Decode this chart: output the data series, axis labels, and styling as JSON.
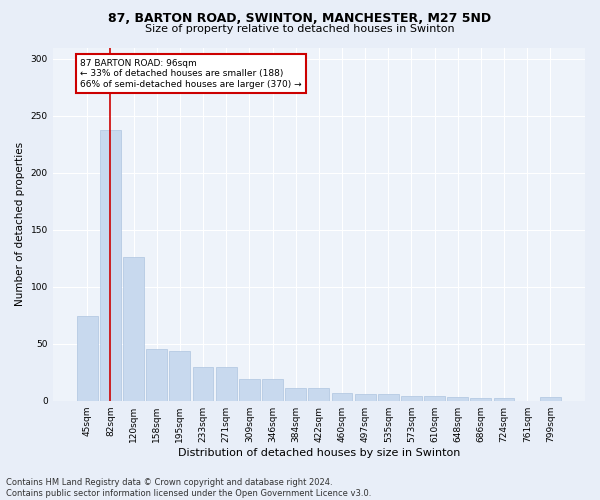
{
  "title1": "87, BARTON ROAD, SWINTON, MANCHESTER, M27 5ND",
  "title2": "Size of property relative to detached houses in Swinton",
  "xlabel": "Distribution of detached houses by size in Swinton",
  "ylabel": "Number of detached properties",
  "categories": [
    "45sqm",
    "82sqm",
    "120sqm",
    "158sqm",
    "195sqm",
    "233sqm",
    "271sqm",
    "309sqm",
    "346sqm",
    "384sqm",
    "422sqm",
    "460sqm",
    "497sqm",
    "535sqm",
    "573sqm",
    "610sqm",
    "648sqm",
    "686sqm",
    "724sqm",
    "761sqm",
    "799sqm"
  ],
  "values": [
    74,
    238,
    126,
    45,
    44,
    30,
    30,
    19,
    19,
    11,
    11,
    7,
    6,
    6,
    4,
    4,
    3,
    2,
    2,
    0,
    3
  ],
  "bar_color": "#c8d9ee",
  "bar_edgecolor": "#aec4e0",
  "vline_x": 1.0,
  "vline_color": "#cc0000",
  "annotation_text": "87 BARTON ROAD: 96sqm\n← 33% of detached houses are smaller (188)\n66% of semi-detached houses are larger (370) →",
  "annotation_box_edgecolor": "#cc0000",
  "annotation_box_facecolor": "#ffffff",
  "ylim": [
    0,
    310
  ],
  "yticks": [
    0,
    50,
    100,
    150,
    200,
    250,
    300
  ],
  "footer": "Contains HM Land Registry data © Crown copyright and database right 2024.\nContains public sector information licensed under the Open Government Licence v3.0.",
  "bg_color": "#e8eef8",
  "plot_bg_color": "#eef3fa",
  "grid_color": "#ffffff",
  "title1_fontsize": 9,
  "title2_fontsize": 8,
  "ylabel_fontsize": 7.5,
  "xlabel_fontsize": 8,
  "tick_fontsize": 6.5,
  "footer_fontsize": 6
}
